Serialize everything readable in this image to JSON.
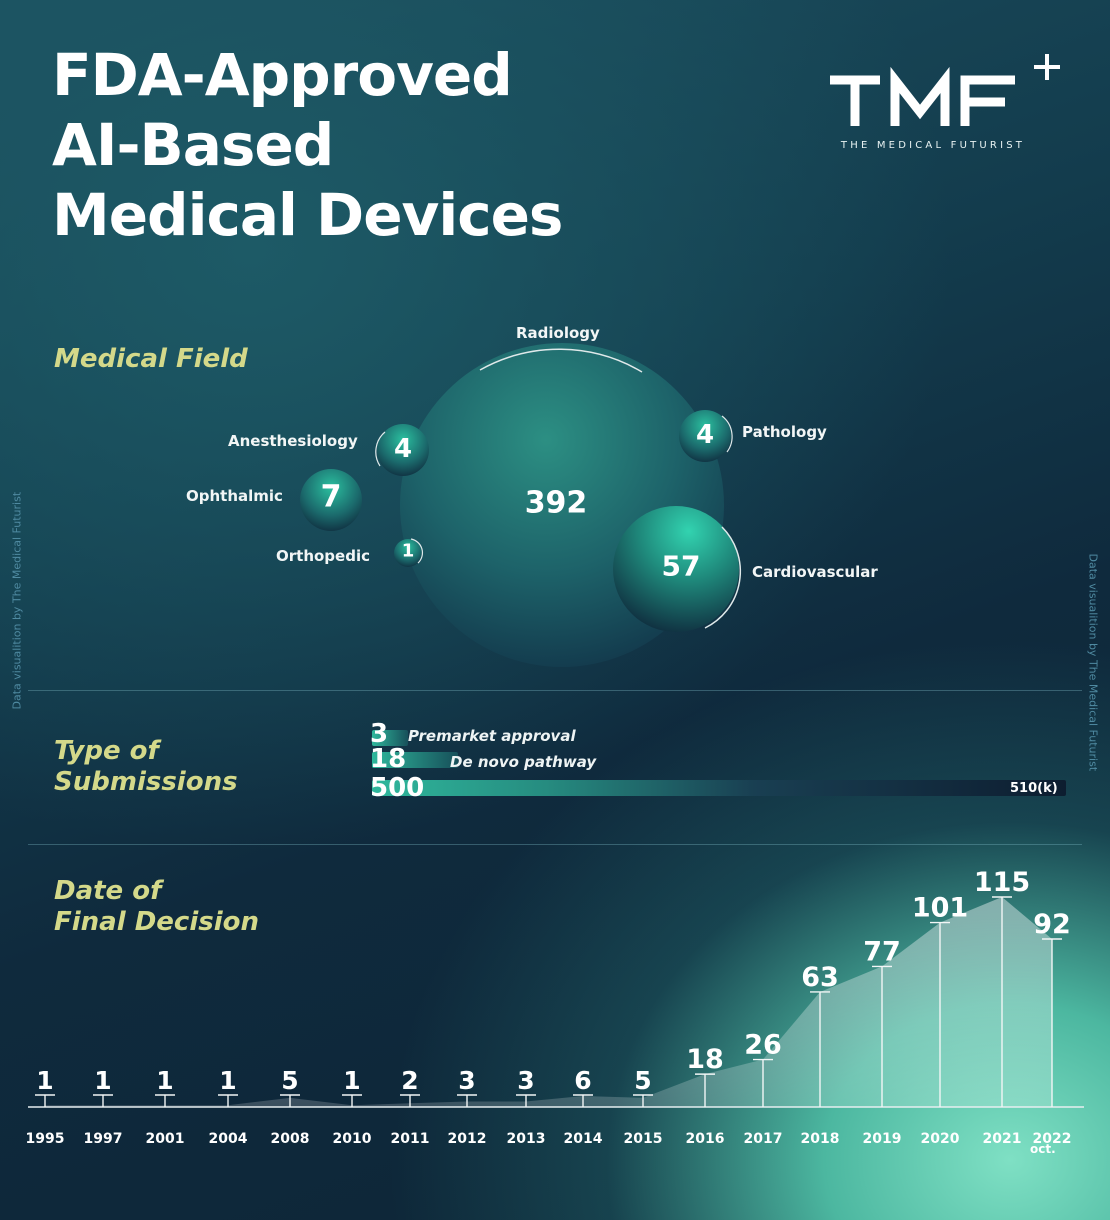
{
  "title": [
    "FDA-Approved",
    "AI-Based",
    "Medical Devices"
  ],
  "logo": {
    "mark": "TMF",
    "plus": "+",
    "subtitle": "THE MEDICAL FUTURIST"
  },
  "credit": "Data visualition by The Medical Futurist",
  "sections": {
    "field": "Medical Field",
    "submissions": [
      "Type of",
      "Submissions"
    ],
    "date": [
      "Date of",
      "Final Decision"
    ]
  },
  "colors": {
    "accent": "#2fb79c",
    "label": "#d4d98a",
    "background": "#133c4d"
  },
  "chart_data": [
    {
      "type": "bubble",
      "title": "Medical Field",
      "items": [
        {
          "label": "Radiology",
          "value": 392
        },
        {
          "label": "Cardiovascular",
          "value": 57
        },
        {
          "label": "Ophthalmic",
          "value": 7
        },
        {
          "label": "Anesthesiology",
          "value": 4
        },
        {
          "label": "Pathology",
          "value": 4
        },
        {
          "label": "Orthopedic",
          "value": 1
        }
      ]
    },
    {
      "type": "bar",
      "title": "Type of Submissions",
      "items": [
        {
          "label": "Premarket approval",
          "value": 3
        },
        {
          "label": "De novo pathway",
          "value": 18
        },
        {
          "label": "510(k)",
          "value": 500
        }
      ]
    },
    {
      "type": "area",
      "title": "Date of Final Decision",
      "categories": [
        "1995",
        "1997",
        "2001",
        "2004",
        "2008",
        "2010",
        "2011",
        "2012",
        "2013",
        "2014",
        "2015",
        "2016",
        "2017",
        "2018",
        "2019",
        "2020",
        "2021",
        "2022"
      ],
      "category_note": {
        "2022": "oct."
      },
      "values": [
        1,
        1,
        1,
        1,
        5,
        1,
        2,
        3,
        3,
        6,
        5,
        18,
        26,
        63,
        77,
        101,
        115,
        92
      ]
    }
  ]
}
